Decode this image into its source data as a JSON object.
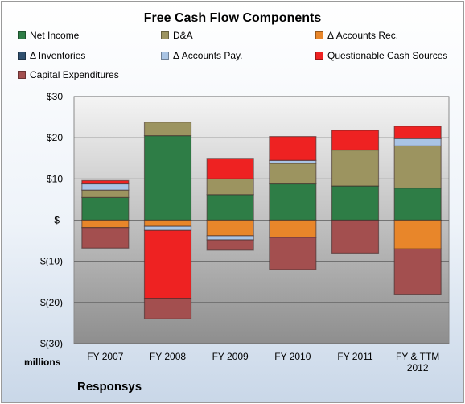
{
  "chart_data": {
    "type": "bar",
    "stacked": true,
    "title": "Free Cash Flow Components",
    "units_label": "millions",
    "company": "Responsys",
    "categories": [
      "FY 2007",
      "FY 2008",
      "FY 2009",
      "FY 2010",
      "FY 2011",
      "FY & TTM 2012"
    ],
    "ylim": [
      -30,
      30
    ],
    "yticks": [
      {
        "value": 30,
        "label": "$30"
      },
      {
        "value": 20,
        "label": "$20"
      },
      {
        "value": 10,
        "label": "$10"
      },
      {
        "value": 0,
        "label": "$-"
      },
      {
        "value": -10,
        "label": "$(10)"
      },
      {
        "value": -20,
        "label": "$(20)"
      },
      {
        "value": -30,
        "label": "$(30)"
      }
    ],
    "grid": true,
    "legend_position": "top",
    "series": [
      {
        "name": "Net Income",
        "color": "#2e7d46",
        "values": [
          5.5,
          20.5,
          6.2,
          8.8,
          8.3,
          7.8
        ]
      },
      {
        "name": "D&A",
        "color": "#9c9460",
        "values": [
          1.8,
          3.3,
          3.8,
          5.0,
          8.7,
          10.2
        ]
      },
      {
        "name": "Δ Accounts Rec.",
        "color": "#e8862a",
        "values": [
          -1.8,
          -1.5,
          -3.8,
          -4.2,
          0,
          -7.0
        ]
      },
      {
        "name": "Δ Inventories",
        "color": "#2f4f6e",
        "values": [
          0,
          0,
          0,
          0,
          0,
          0
        ]
      },
      {
        "name": "Δ Accounts Pay.",
        "color": "#a9c4e4",
        "values": [
          1.5,
          -1.0,
          -1.0,
          0.7,
          0,
          1.8
        ]
      },
      {
        "name": "Questionable Cash Sources",
        "color": "#ee2222",
        "values": [
          0.8,
          -16.5,
          5.0,
          5.8,
          4.8,
          3.0
        ]
      },
      {
        "name": "Capital Expenditures",
        "color": "#a34f4f",
        "values": [
          -5.0,
          -5.0,
          -2.5,
          -7.8,
          -8.0,
          -11.0
        ]
      }
    ]
  }
}
